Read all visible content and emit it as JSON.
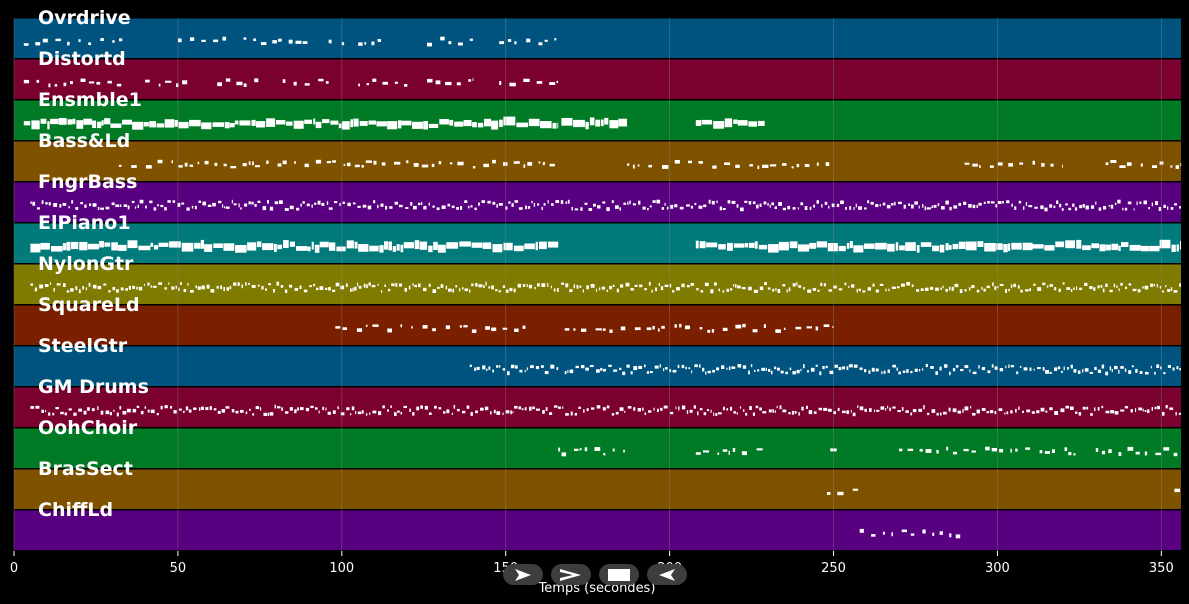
{
  "colors": {
    "background": "#000000",
    "grid": "#8a8a8a",
    "note": "#ffffff"
  },
  "axis": {
    "xlabel": "Temps (secondes)",
    "xlim": [
      0,
      356
    ],
    "ticks": [
      "0",
      "50",
      "100",
      "150",
      "200",
      "250",
      "300",
      "350"
    ],
    "tick_values": [
      0,
      50,
      100,
      150,
      200,
      250,
      300,
      350
    ]
  },
  "transport": {
    "buttons": [
      {
        "name": "play-icon"
      },
      {
        "name": "fast-forward-icon"
      },
      {
        "name": "stop-icon"
      },
      {
        "name": "rewind-icon"
      }
    ]
  },
  "tracks": [
    {
      "label": "Ovrdrive",
      "color": "#00537f",
      "density": "sparse",
      "segments": [
        [
          3,
          33
        ],
        [
          50,
          65
        ],
        [
          70,
          90
        ],
        [
          96,
          102
        ],
        [
          105,
          112
        ],
        [
          126,
          140
        ],
        [
          148,
          166
        ]
      ]
    },
    {
      "label": "Distortd",
      "color": "#7a0030",
      "density": "sparse",
      "segments": [
        [
          3,
          33
        ],
        [
          40,
          53
        ],
        [
          62,
          75
        ],
        [
          82,
          97
        ],
        [
          105,
          120
        ],
        [
          126,
          140
        ],
        [
          148,
          166
        ]
      ]
    },
    {
      "label": "Ensmble1",
      "color": "#007a24",
      "density": "thick",
      "segments": [
        [
          3,
          166
        ],
        [
          167,
          187
        ],
        [
          208,
          229
        ]
      ]
    },
    {
      "label": "Bass&Ld",
      "color": "#7f5200",
      "density": "sparse",
      "segments": [
        [
          32,
          103
        ],
        [
          104,
          166
        ],
        [
          187,
          250
        ],
        [
          290,
          320
        ],
        [
          333,
          356
        ]
      ]
    },
    {
      "label": "FngrBass",
      "color": "#580080",
      "density": "dense",
      "segments": [
        [
          5,
          356
        ]
      ]
    },
    {
      "label": "ElPiano1",
      "color": "#007a7a",
      "density": "thick",
      "segments": [
        [
          5,
          166
        ],
        [
          208,
          356
        ]
      ]
    },
    {
      "label": "NylonGtr",
      "color": "#7f7a00",
      "density": "dense",
      "segments": [
        [
          5,
          356
        ]
      ]
    },
    {
      "label": "SquareLd",
      "color": "#7a2000",
      "density": "sparse",
      "segments": [
        [
          98,
          133
        ],
        [
          136,
          156
        ],
        [
          168,
          250
        ]
      ]
    },
    {
      "label": "SteelGtr",
      "color": "#00537f",
      "density": "dense",
      "segments": [
        [
          139,
          166
        ],
        [
          168,
          356
        ]
      ]
    },
    {
      "label": "GM Drums",
      "color": "#7a0030",
      "density": "dense",
      "segments": [
        [
          5,
          356
        ]
      ]
    },
    {
      "label": "OohChoir",
      "color": "#007a24",
      "density": "sparse",
      "segments": [
        [
          166,
          187
        ],
        [
          208,
          229
        ],
        [
          249,
          252
        ],
        [
          270,
          325
        ],
        [
          330,
          356
        ]
      ]
    },
    {
      "label": "BrasSect",
      "color": "#7f5200",
      "density": "sparse",
      "segments": [
        [
          248,
          258
        ],
        [
          354,
          356
        ]
      ]
    },
    {
      "label": "ChiffLd",
      "color": "#580080",
      "density": "sparse",
      "segments": [
        [
          258,
          290
        ]
      ]
    }
  ]
}
